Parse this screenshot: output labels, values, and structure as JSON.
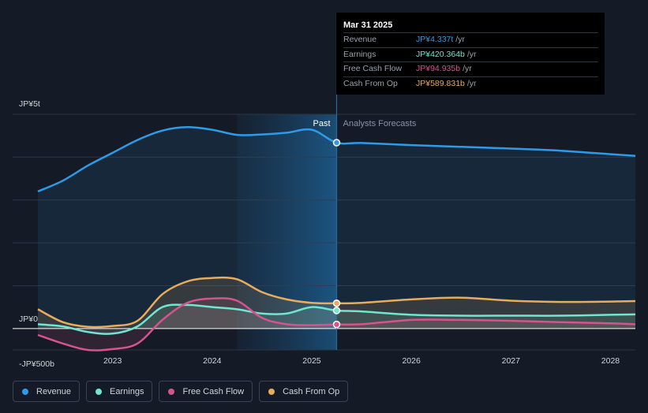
{
  "tooltip": {
    "date": "Mar 31 2025",
    "rows": [
      {
        "label": "Revenue",
        "value": "JP¥4.337t",
        "unit": "/yr",
        "color": "#2e9be8"
      },
      {
        "label": "Earnings",
        "value": "JP¥420.364b",
        "unit": "/yr",
        "color": "#70e6d0"
      },
      {
        "label": "Free Cash Flow",
        "value": "JP¥94.935b",
        "unit": "/yr",
        "color": "#d6538e"
      },
      {
        "label": "Cash From Op",
        "value": "JP¥589.831b",
        "unit": "/yr",
        "color": "#e8ac5d"
      }
    ]
  },
  "legend": [
    {
      "label": "Revenue",
      "color": "#2e9be8"
    },
    {
      "label": "Earnings",
      "color": "#70e6d0"
    },
    {
      "label": "Free Cash Flow",
      "color": "#d6538e"
    },
    {
      "label": "Cash From Op",
      "color": "#e8ac5d"
    }
  ],
  "chart_data": {
    "type": "area",
    "y_unit": "JP¥ trillion",
    "ylim": [
      -0.5,
      5
    ],
    "y_tick_labels": [
      {
        "value": 5,
        "label": "JP¥5t"
      },
      {
        "value": 0,
        "label": "JP¥0"
      },
      {
        "value": -0.5,
        "label": "-JP¥500b"
      }
    ],
    "xlim": [
      2022.25,
      2028.25
    ],
    "x_tick_labels": [
      "2023",
      "2024",
      "2025",
      "2026",
      "2027",
      "2028"
    ],
    "x_ticks": [
      2023,
      2024,
      2025,
      2026,
      2027,
      2028
    ],
    "past_label": "Past",
    "forecast_label": "Analysts Forecasts",
    "divider_x": 2025.25,
    "highlight_start_x": 2024.25,
    "series": [
      {
        "name": "Revenue",
        "color": "#2e9be8",
        "x": [
          2022.25,
          2022.5,
          2022.75,
          2023.0,
          2023.25,
          2023.5,
          2023.75,
          2024.0,
          2024.25,
          2024.5,
          2024.75,
          2025.0,
          2025.25,
          2025.5,
          2026.0,
          2026.5,
          2027.0,
          2027.5,
          2028.0,
          2028.25
        ],
        "y": [
          3.2,
          3.45,
          3.8,
          4.1,
          4.4,
          4.62,
          4.7,
          4.64,
          4.52,
          4.53,
          4.57,
          4.64,
          4.337,
          4.33,
          4.28,
          4.24,
          4.2,
          4.15,
          4.07,
          4.03
        ]
      },
      {
        "name": "Earnings",
        "color": "#70e6d0",
        "x": [
          2022.25,
          2022.5,
          2022.75,
          2023.0,
          2023.25,
          2023.5,
          2023.75,
          2024.0,
          2024.25,
          2024.5,
          2024.75,
          2025.0,
          2025.25,
          2025.5,
          2026.0,
          2026.5,
          2027.0,
          2027.5,
          2028.0,
          2028.25
        ],
        "y": [
          0.1,
          0.05,
          -0.08,
          -0.12,
          0.05,
          0.5,
          0.55,
          0.5,
          0.45,
          0.35,
          0.35,
          0.5,
          0.420364,
          0.4,
          0.32,
          0.3,
          0.3,
          0.3,
          0.32,
          0.33
        ]
      },
      {
        "name": "Free Cash Flow",
        "color": "#d6538e",
        "x": [
          2022.25,
          2022.5,
          2022.75,
          2023.0,
          2023.25,
          2023.5,
          2023.75,
          2024.0,
          2024.25,
          2024.5,
          2024.75,
          2025.0,
          2025.25,
          2025.5,
          2026.0,
          2026.5,
          2027.0,
          2027.5,
          2028.0,
          2028.25
        ],
        "y": [
          -0.15,
          -0.35,
          -0.5,
          -0.48,
          -0.35,
          0.2,
          0.6,
          0.7,
          0.65,
          0.25,
          0.1,
          0.08,
          0.094935,
          0.1,
          0.2,
          0.2,
          0.18,
          0.15,
          0.12,
          0.1
        ]
      },
      {
        "name": "Cash From Op",
        "color": "#e8ac5d",
        "x": [
          2022.25,
          2022.5,
          2022.75,
          2023.0,
          2023.25,
          2023.5,
          2023.75,
          2024.0,
          2024.25,
          2024.5,
          2024.75,
          2025.0,
          2025.25,
          2025.5,
          2026.0,
          2026.5,
          2027.0,
          2027.5,
          2028.0,
          2028.25
        ],
        "y": [
          0.45,
          0.15,
          0.04,
          0.06,
          0.18,
          0.8,
          1.1,
          1.18,
          1.15,
          0.85,
          0.68,
          0.6,
          0.589831,
          0.6,
          0.68,
          0.72,
          0.65,
          0.62,
          0.63,
          0.64
        ]
      }
    ]
  }
}
